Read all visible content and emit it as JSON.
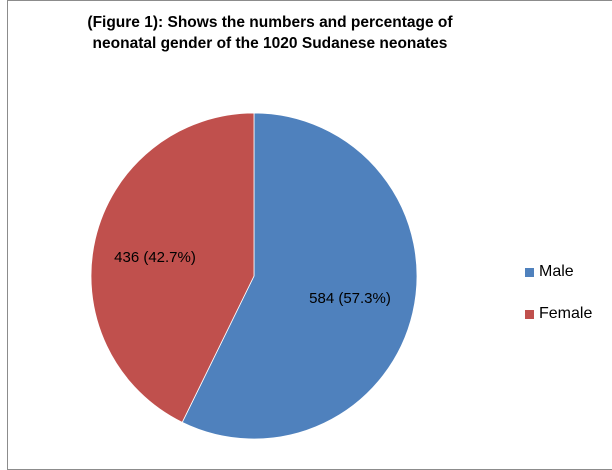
{
  "chart_data": {
    "type": "pie",
    "title": [
      "(Figure 1): Shows the numbers and percentage of",
      "neonatal  gender  of the 1020 Sudanese neonates"
    ],
    "slices": [
      {
        "name": "Male",
        "value": 584,
        "percent": 57.3,
        "label": "584 (57.3%)",
        "color": "#4f81bd"
      },
      {
        "name": "Female",
        "value": 436,
        "percent": 42.7,
        "label": "436 (42.7%)",
        "color": "#c0504d"
      }
    ],
    "legend": {
      "position": "right",
      "items": [
        "Male",
        "Female"
      ]
    }
  }
}
